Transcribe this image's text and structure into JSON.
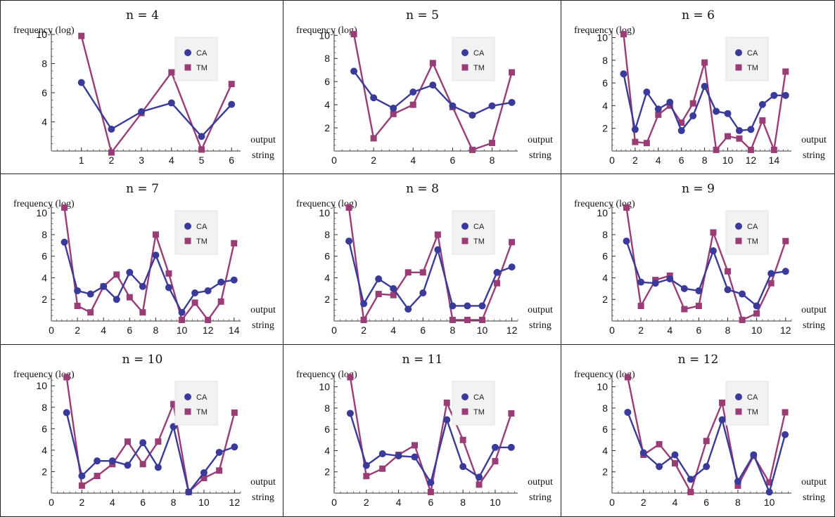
{
  "common": {
    "ylabel": "frequency (log)",
    "xlabel_line1": "output",
    "xlabel_line2": "string",
    "legend": [
      "CA",
      "TM"
    ],
    "colors": {
      "CA": "#3a3a9a",
      "TM": "#9a3c76"
    },
    "legend_placement": "upper-right"
  },
  "chart_data": [
    {
      "type": "line",
      "title": "n = 4",
      "x": [
        1,
        2,
        3,
        4,
        5,
        6
      ],
      "xlim": [
        0,
        6.3
      ],
      "ylim": [
        2,
        10.1
      ],
      "x_axis_y": 2,
      "xticks": [
        1,
        2,
        3,
        4,
        5,
        6
      ],
      "yticks": [
        4,
        6,
        8,
        10
      ],
      "series": [
        {
          "name": "CA",
          "values": [
            6.7,
            3.5,
            4.7,
            5.3,
            3.0,
            5.2
          ]
        },
        {
          "name": "TM",
          "values": [
            9.9,
            1.9,
            4.6,
            7.4,
            2.1,
            6.6
          ]
        }
      ]
    },
    {
      "type": "line",
      "title": "n = 5",
      "x": [
        1,
        2,
        3,
        4,
        5,
        6,
        7,
        8,
        9
      ],
      "xlim": [
        0,
        9.3
      ],
      "ylim": [
        0,
        10.2
      ],
      "x_axis_y": 0,
      "xticks": [
        0,
        2,
        4,
        6,
        8
      ],
      "yticks": [
        2,
        4,
        6,
        8,
        10
      ],
      "series": [
        {
          "name": "CA",
          "values": [
            6.9,
            4.6,
            3.7,
            5.1,
            5.7,
            3.9,
            3.1,
            3.9,
            4.2
          ]
        },
        {
          "name": "TM",
          "values": [
            10.1,
            1.1,
            3.2,
            4.0,
            7.6,
            3.8,
            0.1,
            0.7,
            6.8
          ]
        }
      ]
    },
    {
      "type": "line",
      "title": "n = 6",
      "x": [
        1,
        2,
        3,
        4,
        5,
        6,
        7,
        8,
        9,
        10,
        11,
        12,
        13,
        14,
        15
      ],
      "xlim": [
        0,
        15.5
      ],
      "ylim": [
        0,
        10.4
      ],
      "x_axis_y": 0,
      "xticks": [
        0,
        2,
        4,
        6,
        8,
        10,
        12,
        14
      ],
      "yticks": [
        2,
        4,
        6,
        8,
        10
      ],
      "series": [
        {
          "name": "CA",
          "values": [
            6.8,
            1.9,
            5.2,
            3.7,
            4.3,
            1.8,
            3.1,
            5.7,
            3.5,
            3.3,
            1.8,
            1.9,
            4.1,
            4.9,
            4.9
          ]
        },
        {
          "name": "TM",
          "values": [
            10.3,
            0.8,
            0.7,
            3.2,
            4.0,
            2.5,
            4.2,
            7.8,
            0.1,
            1.3,
            1.1,
            0.1,
            2.7,
            0.1,
            7.0
          ]
        }
      ]
    },
    {
      "type": "line",
      "title": "n = 7",
      "x": [
        1,
        2,
        3,
        4,
        5,
        6,
        7,
        8,
        9,
        10,
        11,
        12,
        13,
        14
      ],
      "xlim": [
        0,
        14.5
      ],
      "ylim": [
        0,
        10.6
      ],
      "x_axis_y": 0,
      "xticks": [
        0,
        2,
        4,
        6,
        8,
        10,
        12,
        14
      ],
      "yticks": [
        2,
        4,
        6,
        8,
        10
      ],
      "series": [
        {
          "name": "CA",
          "values": [
            7.3,
            2.8,
            2.5,
            3.2,
            2.0,
            4.5,
            3.2,
            6.1,
            3.1,
            0.8,
            2.6,
            2.8,
            3.6,
            3.8
          ]
        },
        {
          "name": "TM",
          "values": [
            10.5,
            1.4,
            0.8,
            3.2,
            4.3,
            2.2,
            0.8,
            8.0,
            4.4,
            0.1,
            1.7,
            0.1,
            1.8,
            7.2
          ]
        }
      ]
    },
    {
      "type": "line",
      "title": "n = 8",
      "x": [
        1,
        2,
        3,
        4,
        5,
        6,
        7,
        8,
        9,
        10,
        11,
        12
      ],
      "xlim": [
        0,
        12.4
      ],
      "ylim": [
        0,
        10.6
      ],
      "x_axis_y": 0,
      "xticks": [
        0,
        2,
        4,
        6,
        8,
        10,
        12
      ],
      "yticks": [
        2,
        4,
        6,
        8,
        10
      ],
      "series": [
        {
          "name": "CA",
          "values": [
            7.4,
            1.6,
            3.9,
            3.0,
            1.1,
            2.6,
            6.6,
            1.4,
            1.4,
            1.4,
            4.5,
            5.0
          ]
        },
        {
          "name": "TM",
          "values": [
            10.5,
            0.1,
            2.5,
            2.4,
            4.5,
            4.5,
            8.0,
            0.1,
            0.1,
            0.1,
            3.5,
            7.3
          ]
        }
      ]
    },
    {
      "type": "line",
      "title": "n = 9",
      "x": [
        1,
        2,
        3,
        4,
        5,
        6,
        7,
        8,
        9,
        10,
        11,
        12
      ],
      "xlim": [
        0,
        12.4
      ],
      "ylim": [
        0,
        10.6
      ],
      "x_axis_y": 0,
      "xticks": [
        0,
        2,
        4,
        6,
        8,
        10,
        12
      ],
      "yticks": [
        2,
        4,
        6,
        8,
        10
      ],
      "series": [
        {
          "name": "CA",
          "values": [
            7.4,
            3.6,
            3.5,
            3.9,
            3.0,
            2.8,
            6.5,
            2.9,
            2.5,
            1.4,
            4.4,
            4.6
          ]
        },
        {
          "name": "TM",
          "values": [
            10.5,
            1.4,
            3.8,
            4.2,
            1.1,
            1.4,
            8.2,
            4.6,
            0.1,
            0.7,
            3.5,
            7.4
          ]
        }
      ]
    },
    {
      "type": "line",
      "title": "n = 10",
      "x": [
        1,
        2,
        3,
        4,
        5,
        6,
        7,
        8,
        9,
        10,
        11,
        12
      ],
      "xlim": [
        0,
        12.4
      ],
      "ylim": [
        0,
        10.8
      ],
      "x_axis_y": 0,
      "xticks": [
        0,
        2,
        4,
        6,
        8,
        10,
        12
      ],
      "yticks": [
        2,
        4,
        6,
        8,
        10
      ],
      "series": [
        {
          "name": "CA",
          "values": [
            7.5,
            1.6,
            3.0,
            3.0,
            2.6,
            4.7,
            2.4,
            6.2,
            0.1,
            1.9,
            3.8,
            4.3
          ]
        },
        {
          "name": "TM",
          "values": [
            10.8,
            0.7,
            1.6,
            2.7,
            4.8,
            2.7,
            4.8,
            8.3,
            0.1,
            1.4,
            2.1,
            7.5
          ]
        }
      ]
    },
    {
      "type": "line",
      "title": "n = 11",
      "x": [
        1,
        2,
        3,
        4,
        5,
        6,
        7,
        8,
        9,
        10,
        11
      ],
      "xlim": [
        0,
        11.4
      ],
      "ylim": [
        0,
        10.9
      ],
      "x_axis_y": 0,
      "xticks": [
        0,
        2,
        4,
        6,
        8,
        10
      ],
      "yticks": [
        2,
        4,
        6,
        8,
        10
      ],
      "series": [
        {
          "name": "CA",
          "values": [
            7.5,
            2.6,
            3.7,
            3.5,
            3.4,
            1.0,
            6.9,
            2.5,
            1.5,
            4.3,
            4.3
          ]
        },
        {
          "name": "TM",
          "values": [
            10.9,
            1.6,
            2.3,
            3.6,
            4.5,
            0.1,
            8.5,
            5.0,
            0.8,
            3.0,
            7.5
          ]
        }
      ]
    },
    {
      "type": "line",
      "title": "n = 12",
      "x": [
        1,
        2,
        3,
        4,
        5,
        6,
        7,
        8,
        9,
        10,
        11
      ],
      "xlim": [
        0,
        11.4
      ],
      "ylim": [
        0,
        10.9
      ],
      "x_axis_y": 0,
      "xticks": [
        0,
        2,
        4,
        6,
        8,
        10
      ],
      "yticks": [
        2,
        4,
        6,
        8,
        10
      ],
      "series": [
        {
          "name": "CA",
          "values": [
            7.6,
            3.8,
            2.5,
            3.6,
            1.3,
            2.5,
            6.9,
            1.1,
            3.6,
            0.1,
            5.5
          ]
        },
        {
          "name": "TM",
          "values": [
            10.9,
            3.6,
            4.6,
            2.8,
            0.1,
            4.9,
            8.5,
            0.7,
            3.5,
            1.0,
            7.6
          ]
        }
      ]
    }
  ]
}
